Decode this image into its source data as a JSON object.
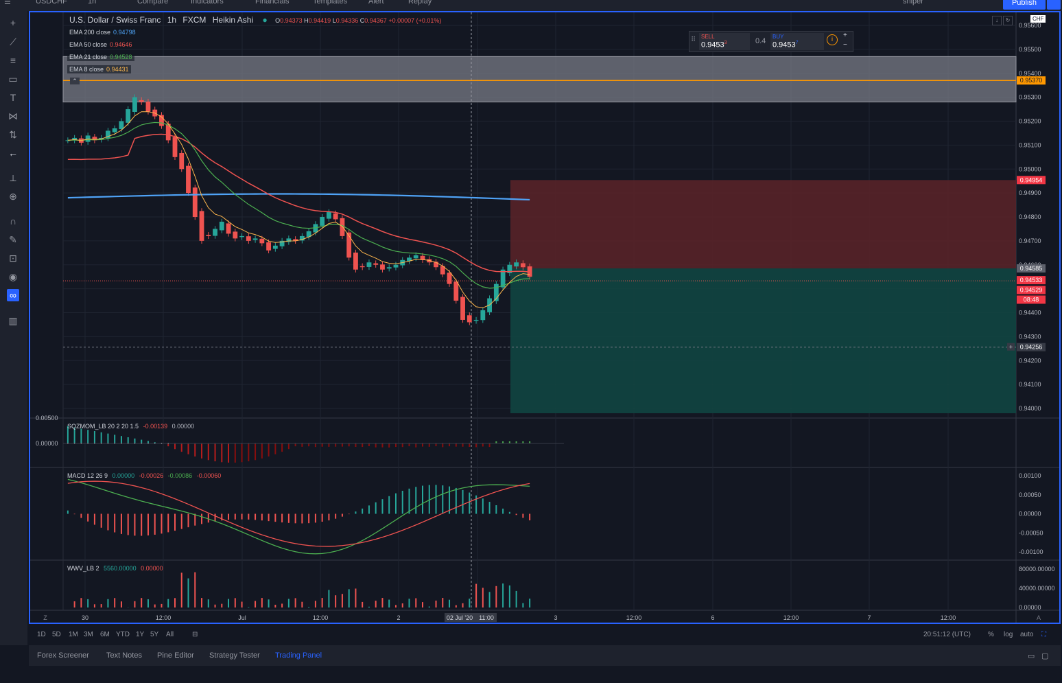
{
  "topbar": {
    "symbol": "USDCHF",
    "interval": "1h",
    "compare": "Compare",
    "indicators": "Indicators",
    "financials": "Financials",
    "templates": "Templates",
    "alert": "Alert",
    "replay": "Replay",
    "layout": "sniper",
    "publish": "Publish"
  },
  "header": {
    "title": "U.S. Dollar / Swiss Franc",
    "interval": "1h",
    "exchange": "FXCM",
    "chart_style": "Heikin Ashi",
    "ohlc": {
      "o": "0.94373",
      "h": "0.94419",
      "l": "0.94336",
      "c": "0.94367",
      "chg": "+0.00007 (+0.01%)"
    },
    "o_label": "O",
    "h_label": "H",
    "l_label": "L",
    "c_label": "C"
  },
  "legend": [
    {
      "name": "EMA 200 close",
      "value": "0.94798",
      "color": "#4fa3f7"
    },
    {
      "name": "EMA 50 close",
      "value": "0.94646",
      "color": "#ef5350"
    },
    {
      "name": "EMA 21 close",
      "value": "0.94528",
      "color": "#4caf50"
    },
    {
      "name": "EMA 8 close",
      "value": "0.94431",
      "color": "#ffb74d"
    }
  ],
  "trade": {
    "sell_label": "SELL",
    "sell_price": "0.9453",
    "sell_sup": "3",
    "spread": "0.4",
    "buy_label": "BUY",
    "buy_price": "0.9453",
    "buy_sup": "7"
  },
  "currency": "CHF",
  "price_axis": [
    "0.95600",
    "0.95500",
    "0.95400",
    "0.95300",
    "0.95200",
    "0.95100",
    "0.95000",
    "0.94900",
    "0.94800",
    "0.94700",
    "0.94600",
    "0.94500",
    "0.94400",
    "0.94300",
    "0.94200",
    "0.94100",
    "0.94000"
  ],
  "price_tags": [
    {
      "value": "0.95370",
      "color": "#ff9800",
      "text_color": "#131722"
    },
    {
      "value": "0.94954",
      "color": "#f23645",
      "text_color": "#ffffff"
    },
    {
      "value": "0.94585",
      "color": "#5d606b",
      "text_color": "#ffffff"
    },
    {
      "value": "0.94533",
      "color": "#f23645",
      "text_color": "#ffffff"
    },
    {
      "value": "0.94529",
      "color": "#f23645",
      "text_color": "#ffffff"
    },
    {
      "value": "08:48",
      "color": "#f23645",
      "text_color": "#ffffff"
    },
    {
      "value": "0.94256",
      "color": "#363a45",
      "text_color": "#ffffff"
    }
  ],
  "squeeze": {
    "label": "SQZMOM_LB 20 2 20 1.5",
    "v1": "-0.00139",
    "v2": "0.00000",
    "axis": [
      "0.00500",
      "0.00000"
    ]
  },
  "macd": {
    "label": "MACD 12 26 9",
    "v1": "0.00000",
    "v2": "-0.00026",
    "v3": "-0.00086",
    "v4": "-0.00060",
    "axis": [
      "0.00100",
      "0.00050",
      "0.00000",
      "-0.00050",
      "-0.00100"
    ]
  },
  "wvv": {
    "label": "WWV_LB 2",
    "v1": "5560.00000",
    "v2": "0.00000",
    "axis": [
      "80000.00000",
      "40000.00000",
      "0.00000"
    ]
  },
  "time_axis": [
    "30",
    "12:00",
    "Jul",
    "12:00",
    "2",
    "11:00",
    "3",
    "12:00",
    "6",
    "12:00",
    "7",
    "12:00"
  ],
  "crosshair_date": "02 Jul '20",
  "range_buttons": [
    "1D",
    "5D",
    "1M",
    "3M",
    "6M",
    "YTD",
    "1Y",
    "5Y",
    "All"
  ],
  "clock": "20:51:12 (UTC)",
  "scale_opts": [
    "%",
    "log",
    "auto"
  ],
  "bottom_tabs": [
    "Forex Screener",
    "Text Notes",
    "Pine Editor",
    "Strategy Tester",
    "Trading Panel"
  ],
  "active_tab": "Trading Panel",
  "axis_badges": {
    "left": "Z",
    "right": "A"
  },
  "colors": {
    "up": "#26a69a",
    "down": "#ef5350",
    "accent": "#2962ff",
    "ema200": "#4fa3f7",
    "ema50": "#ef5350",
    "ema21": "#4caf50",
    "ema8": "#ffb74d"
  }
}
